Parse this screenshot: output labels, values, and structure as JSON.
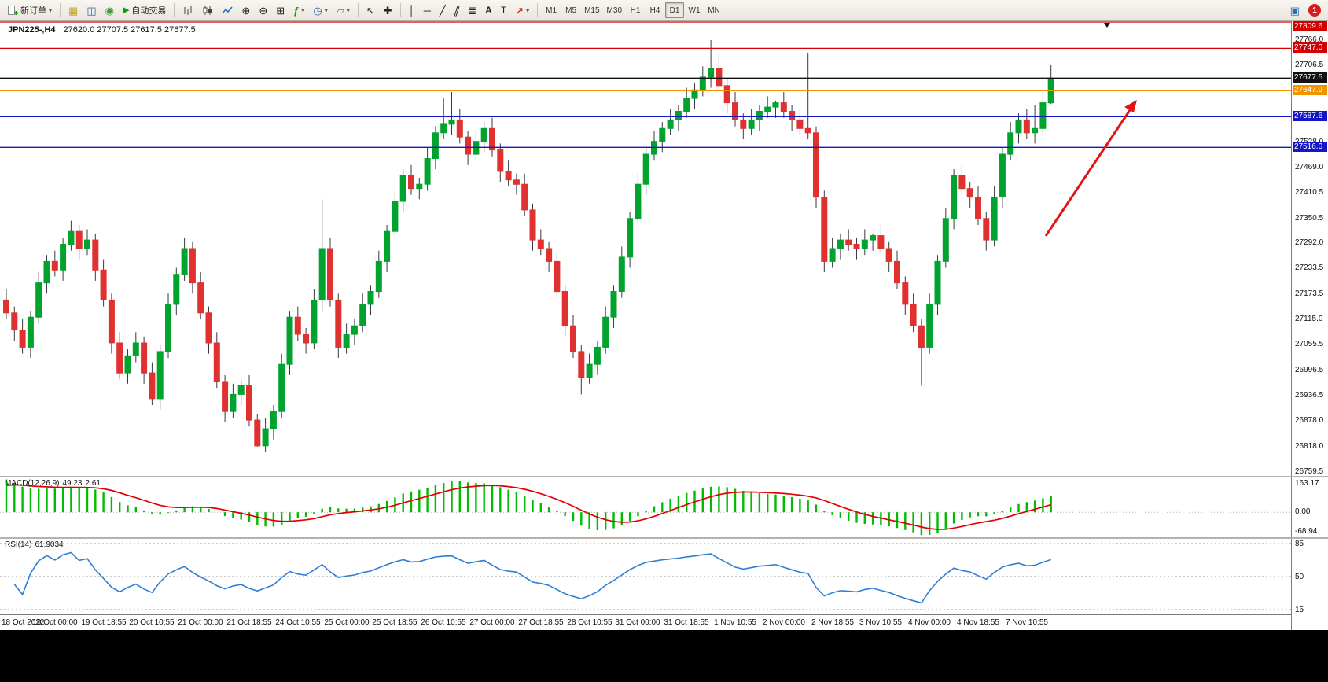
{
  "toolbar": {
    "new_order": "新订单",
    "auto_trading": "自动交易",
    "timeframes": [
      "M1",
      "M5",
      "M15",
      "M30",
      "H1",
      "H4",
      "D1",
      "W1",
      "MN"
    ],
    "active_timeframe": "D1",
    "notification_count": "1"
  },
  "icons": {
    "caret": "▾",
    "chart_window": "▦",
    "profiles": "◫",
    "market_watch": "◉",
    "play": "▶",
    "zoom_in": "⊕",
    "zoom_out": "⊖",
    "tile_windows": "⊞",
    "indicators": "ƒ",
    "clock": "◷",
    "template": "▱",
    "cursor": "↖",
    "crosshair": "✚",
    "vline": "│",
    "hline": "─",
    "trendline": "╱",
    "channel": "∥",
    "fibonacci": "≣",
    "text_tool": "A",
    "label_tool": "T",
    "arrows_tool": "↗",
    "community": "▣"
  },
  "chart": {
    "symbol_title": "JPN225-,H4",
    "ohlc_text": "27620.0 27707.5 27617.5 27677.5",
    "price_ticks": [
      "27766.0",
      "27706.5",
      "27647.0",
      "27587.5",
      "27528.0",
      "27469.0",
      "27410.5",
      "27350.5",
      "27292.0",
      "27233.5",
      "27173.5",
      "27115.0",
      "27055.5",
      "26996.5",
      "26936.5",
      "26878.0",
      "26818.0",
      "26759.5"
    ],
    "hlines": [
      {
        "price": 27809.6,
        "label": "27809.6",
        "color": "#d40000"
      },
      {
        "price": 27747.0,
        "label": "27747.0",
        "color": "#d40000"
      },
      {
        "price": 27677.5,
        "label": "27677.5",
        "color": "#111111"
      },
      {
        "price": 27647.9,
        "label": "27647.9",
        "color": "#f29400"
      },
      {
        "price": 27587.6,
        "label": "27587.6",
        "color": "#1515c8"
      },
      {
        "price": 27516.0,
        "label": "27516.0",
        "color": "#1515c8"
      }
    ]
  },
  "indicators": {
    "macd": {
      "label": "MACD(12,26,9)",
      "value_main": "49.23",
      "value_signal": "2.61",
      "axis": [
        "163.17",
        "0.00",
        "-68.94"
      ],
      "params": {
        "fast": 12,
        "slow": 26,
        "signal": 9
      }
    },
    "rsi": {
      "label": "RSI(14)",
      "value": "61.9034",
      "period": 14,
      "levels": [
        85,
        50,
        15
      ]
    }
  },
  "chart_data": {
    "type": "candlestick",
    "symbol": "JPN225-",
    "timeframe": "H4",
    "y_axis_range": [
      26750,
      27810
    ],
    "x_tick_every": 6,
    "x_labels": [
      "18 Oct 2022",
      "19 Oct 00:00",
      "19 Oct 18:55",
      "20 Oct 10:55",
      "21 Oct 00:00",
      "21 Oct 18:55",
      "24 Oct 10:55",
      "25 Oct 00:00",
      "25 Oct 18:55",
      "26 Oct 10:55",
      "27 Oct 00:00",
      "27 Oct 18:55",
      "28 Oct 10:55",
      "31 Oct 00:00",
      "31 Oct 18:55",
      "1 Nov 10:55",
      "2 Nov 00:00",
      "2 Nov 18:55",
      "3 Nov 10:55",
      "4 Nov 00:00",
      "4 Nov 18:55",
      "7 Nov 10:55"
    ],
    "candles": [
      [
        27160,
        27185,
        27115,
        27130
      ],
      [
        27130,
        27145,
        27065,
        27090
      ],
      [
        27090,
        27115,
        27035,
        27050
      ],
      [
        27050,
        27135,
        27025,
        27120
      ],
      [
        27120,
        27225,
        27105,
        27200
      ],
      [
        27200,
        27265,
        27175,
        27250
      ],
      [
        27250,
        27275,
        27215,
        27230
      ],
      [
        27230,
        27305,
        27205,
        27290
      ],
      [
        27290,
        27345,
        27275,
        27320
      ],
      [
        27320,
        27335,
        27255,
        27280
      ],
      [
        27280,
        27325,
        27265,
        27300
      ],
      [
        27300,
        27315,
        27205,
        27230
      ],
      [
        27230,
        27255,
        27145,
        27160
      ],
      [
        27160,
        27175,
        27035,
        27060
      ],
      [
        27060,
        27085,
        26975,
        26990
      ],
      [
        26990,
        27045,
        26965,
        27030
      ],
      [
        27030,
        27085,
        27015,
        27060
      ],
      [
        27060,
        27075,
        26965,
        26990
      ],
      [
        26990,
        27015,
        26915,
        26930
      ],
      [
        26930,
        27055,
        26905,
        27040
      ],
      [
        27040,
        27175,
        27025,
        27150
      ],
      [
        27150,
        27235,
        27125,
        27220
      ],
      [
        27220,
        27305,
        27205,
        27280
      ],
      [
        27280,
        27295,
        27175,
        27200
      ],
      [
        27200,
        27225,
        27115,
        27130
      ],
      [
        27130,
        27145,
        27035,
        27060
      ],
      [
        27060,
        27085,
        26955,
        26970
      ],
      [
        26970,
        26985,
        26875,
        26900
      ],
      [
        26900,
        26965,
        26885,
        26940
      ],
      [
        26940,
        26975,
        26915,
        26960
      ],
      [
        26960,
        26985,
        26865,
        26880
      ],
      [
        26880,
        26895,
        26818,
        26820
      ],
      [
        26820,
        26885,
        26805,
        26860
      ],
      [
        26860,
        26915,
        26835,
        26900
      ],
      [
        26900,
        27035,
        26885,
        27010
      ],
      [
        27010,
        27135,
        26985,
        27120
      ],
      [
        27120,
        27145,
        27065,
        27080
      ],
      [
        27080,
        27095,
        27035,
        27060
      ],
      [
        27060,
        27185,
        27045,
        27160
      ],
      [
        27160,
        27395,
        27135,
        27280
      ],
      [
        27280,
        27305,
        27145,
        27160
      ],
      [
        27160,
        27175,
        27025,
        27050
      ],
      [
        27050,
        27105,
        27035,
        27080
      ],
      [
        27080,
        27115,
        27055,
        27100
      ],
      [
        27100,
        27175,
        27085,
        27150
      ],
      [
        27150,
        27195,
        27125,
        27180
      ],
      [
        27180,
        27275,
        27165,
        27250
      ],
      [
        27250,
        27335,
        27225,
        27320
      ],
      [
        27320,
        27415,
        27305,
        27390
      ],
      [
        27390,
        27465,
        27365,
        27450
      ],
      [
        27450,
        27475,
        27405,
        27420
      ],
      [
        27420,
        27445,
        27395,
        27430
      ],
      [
        27430,
        27515,
        27415,
        27490
      ],
      [
        27490,
        27565,
        27465,
        27550
      ],
      [
        27550,
        27630,
        27535,
        27570
      ],
      [
        27570,
        27645,
        27545,
        27580
      ],
      [
        27580,
        27605,
        27525,
        27540
      ],
      [
        27540,
        27555,
        27475,
        27500
      ],
      [
        27500,
        27555,
        27485,
        27530
      ],
      [
        27530,
        27575,
        27505,
        27560
      ],
      [
        27560,
        27585,
        27495,
        27510
      ],
      [
        27510,
        27525,
        27435,
        27460
      ],
      [
        27460,
        27485,
        27425,
        27440
      ],
      [
        27440,
        27455,
        27405,
        27430
      ],
      [
        27430,
        27455,
        27355,
        27370
      ],
      [
        27370,
        27385,
        27275,
        27300
      ],
      [
        27300,
        27325,
        27265,
        27280
      ],
      [
        27280,
        27295,
        27225,
        27250
      ],
      [
        27250,
        27275,
        27165,
        27180
      ],
      [
        27180,
        27195,
        27075,
        27100
      ],
      [
        27100,
        27125,
        27025,
        27040
      ],
      [
        27040,
        27055,
        26940,
        26980
      ],
      [
        26980,
        27035,
        26965,
        27010
      ],
      [
        27010,
        27065,
        26985,
        27050
      ],
      [
        27050,
        27145,
        27035,
        27120
      ],
      [
        27120,
        27195,
        27095,
        27180
      ],
      [
        27180,
        27285,
        27165,
        27260
      ],
      [
        27260,
        27365,
        27235,
        27350
      ],
      [
        27350,
        27455,
        27335,
        27430
      ],
      [
        27430,
        27515,
        27405,
        27500
      ],
      [
        27500,
        27555,
        27485,
        27530
      ],
      [
        27530,
        27575,
        27505,
        27560
      ],
      [
        27560,
        27605,
        27545,
        27580
      ],
      [
        27580,
        27615,
        27555,
        27600
      ],
      [
        27600,
        27655,
        27585,
        27630
      ],
      [
        27630,
        27665,
        27605,
        27650
      ],
      [
        27650,
        27705,
        27635,
        27680
      ],
      [
        27680,
        27766,
        27655,
        27700
      ],
      [
        27700,
        27735,
        27645,
        27660
      ],
      [
        27660,
        27675,
        27595,
        27620
      ],
      [
        27620,
        27645,
        27565,
        27580
      ],
      [
        27580,
        27595,
        27535,
        27560
      ],
      [
        27560,
        27605,
        27545,
        27580
      ],
      [
        27580,
        27615,
        27555,
        27600
      ],
      [
        27600,
        27635,
        27585,
        27610
      ],
      [
        27610,
        27625,
        27585,
        27620
      ],
      [
        27620,
        27645,
        27585,
        27600
      ],
      [
        27600,
        27615,
        27555,
        27580
      ],
      [
        27580,
        27605,
        27545,
        27560
      ],
      [
        27560,
        27735,
        27535,
        27550
      ],
      [
        27550,
        27565,
        27375,
        27400
      ],
      [
        27400,
        27415,
        27225,
        27250
      ],
      [
        27250,
        27305,
        27235,
        27280
      ],
      [
        27280,
        27315,
        27255,
        27300
      ],
      [
        27300,
        27325,
        27275,
        27290
      ],
      [
        27290,
        27305,
        27255,
        27280
      ],
      [
        27280,
        27325,
        27265,
        27300
      ],
      [
        27300,
        27315,
        27275,
        27310
      ],
      [
        27310,
        27335,
        27265,
        27280
      ],
      [
        27280,
        27295,
        27225,
        27250
      ],
      [
        27250,
        27275,
        27185,
        27200
      ],
      [
        27200,
        27215,
        27125,
        27150
      ],
      [
        27150,
        27175,
        27085,
        27100
      ],
      [
        27100,
        27115,
        26960,
        27050
      ],
      [
        27050,
        27175,
        27035,
        27150
      ],
      [
        27150,
        27265,
        27125,
        27250
      ],
      [
        27250,
        27375,
        27235,
        27350
      ],
      [
        27350,
        27465,
        27325,
        27450
      ],
      [
        27450,
        27475,
        27405,
        27420
      ],
      [
        27420,
        27435,
        27375,
        27400
      ],
      [
        27400,
        27425,
        27335,
        27350
      ],
      [
        27350,
        27365,
        27275,
        27300
      ],
      [
        27300,
        27425,
        27285,
        27400
      ],
      [
        27400,
        27515,
        27375,
        27500
      ],
      [
        27500,
        27575,
        27485,
        27550
      ],
      [
        27550,
        27595,
        27525,
        27580
      ],
      [
        27580,
        27605,
        27535,
        27550
      ],
      [
        27550,
        27615,
        27525,
        27560
      ],
      [
        27560,
        27645,
        27545,
        27620
      ],
      [
        27620,
        27707.5,
        27617.5,
        27677.5
      ]
    ]
  },
  "colors": {
    "bull": "#00a32e",
    "bear": "#e03030",
    "wick": "#3a3a3a",
    "macd_hist": "#00bb00",
    "macd_signal": "#e00000",
    "rsi_line": "#2e7fd4",
    "arrow": "#e01515",
    "line_red": "#d40000",
    "line_blue": "#1515c8",
    "line_orange": "#f29400",
    "line_black": "#111111"
  }
}
